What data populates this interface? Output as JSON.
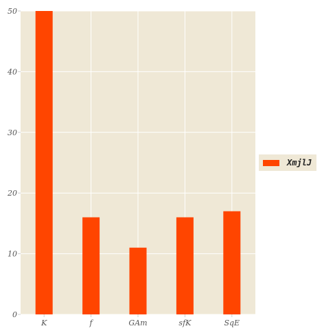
{
  "chart_data": {
    "type": "bar",
    "categories": [
      "K",
      "f",
      "GAm",
      "sfK",
      "SqE"
    ],
    "series": [
      {
        "name": "XmjlJ",
        "values": [
          50,
          16,
          11,
          16,
          17
        ]
      }
    ],
    "ylim": [
      0,
      50
    ],
    "yticks": [
      0,
      10,
      20,
      30,
      40,
      50
    ],
    "grid": true,
    "legend_position": "right",
    "colors": {
      "bar": "#ff4500",
      "plot_background": "#efe8d6",
      "grid": "#ffffff"
    }
  }
}
